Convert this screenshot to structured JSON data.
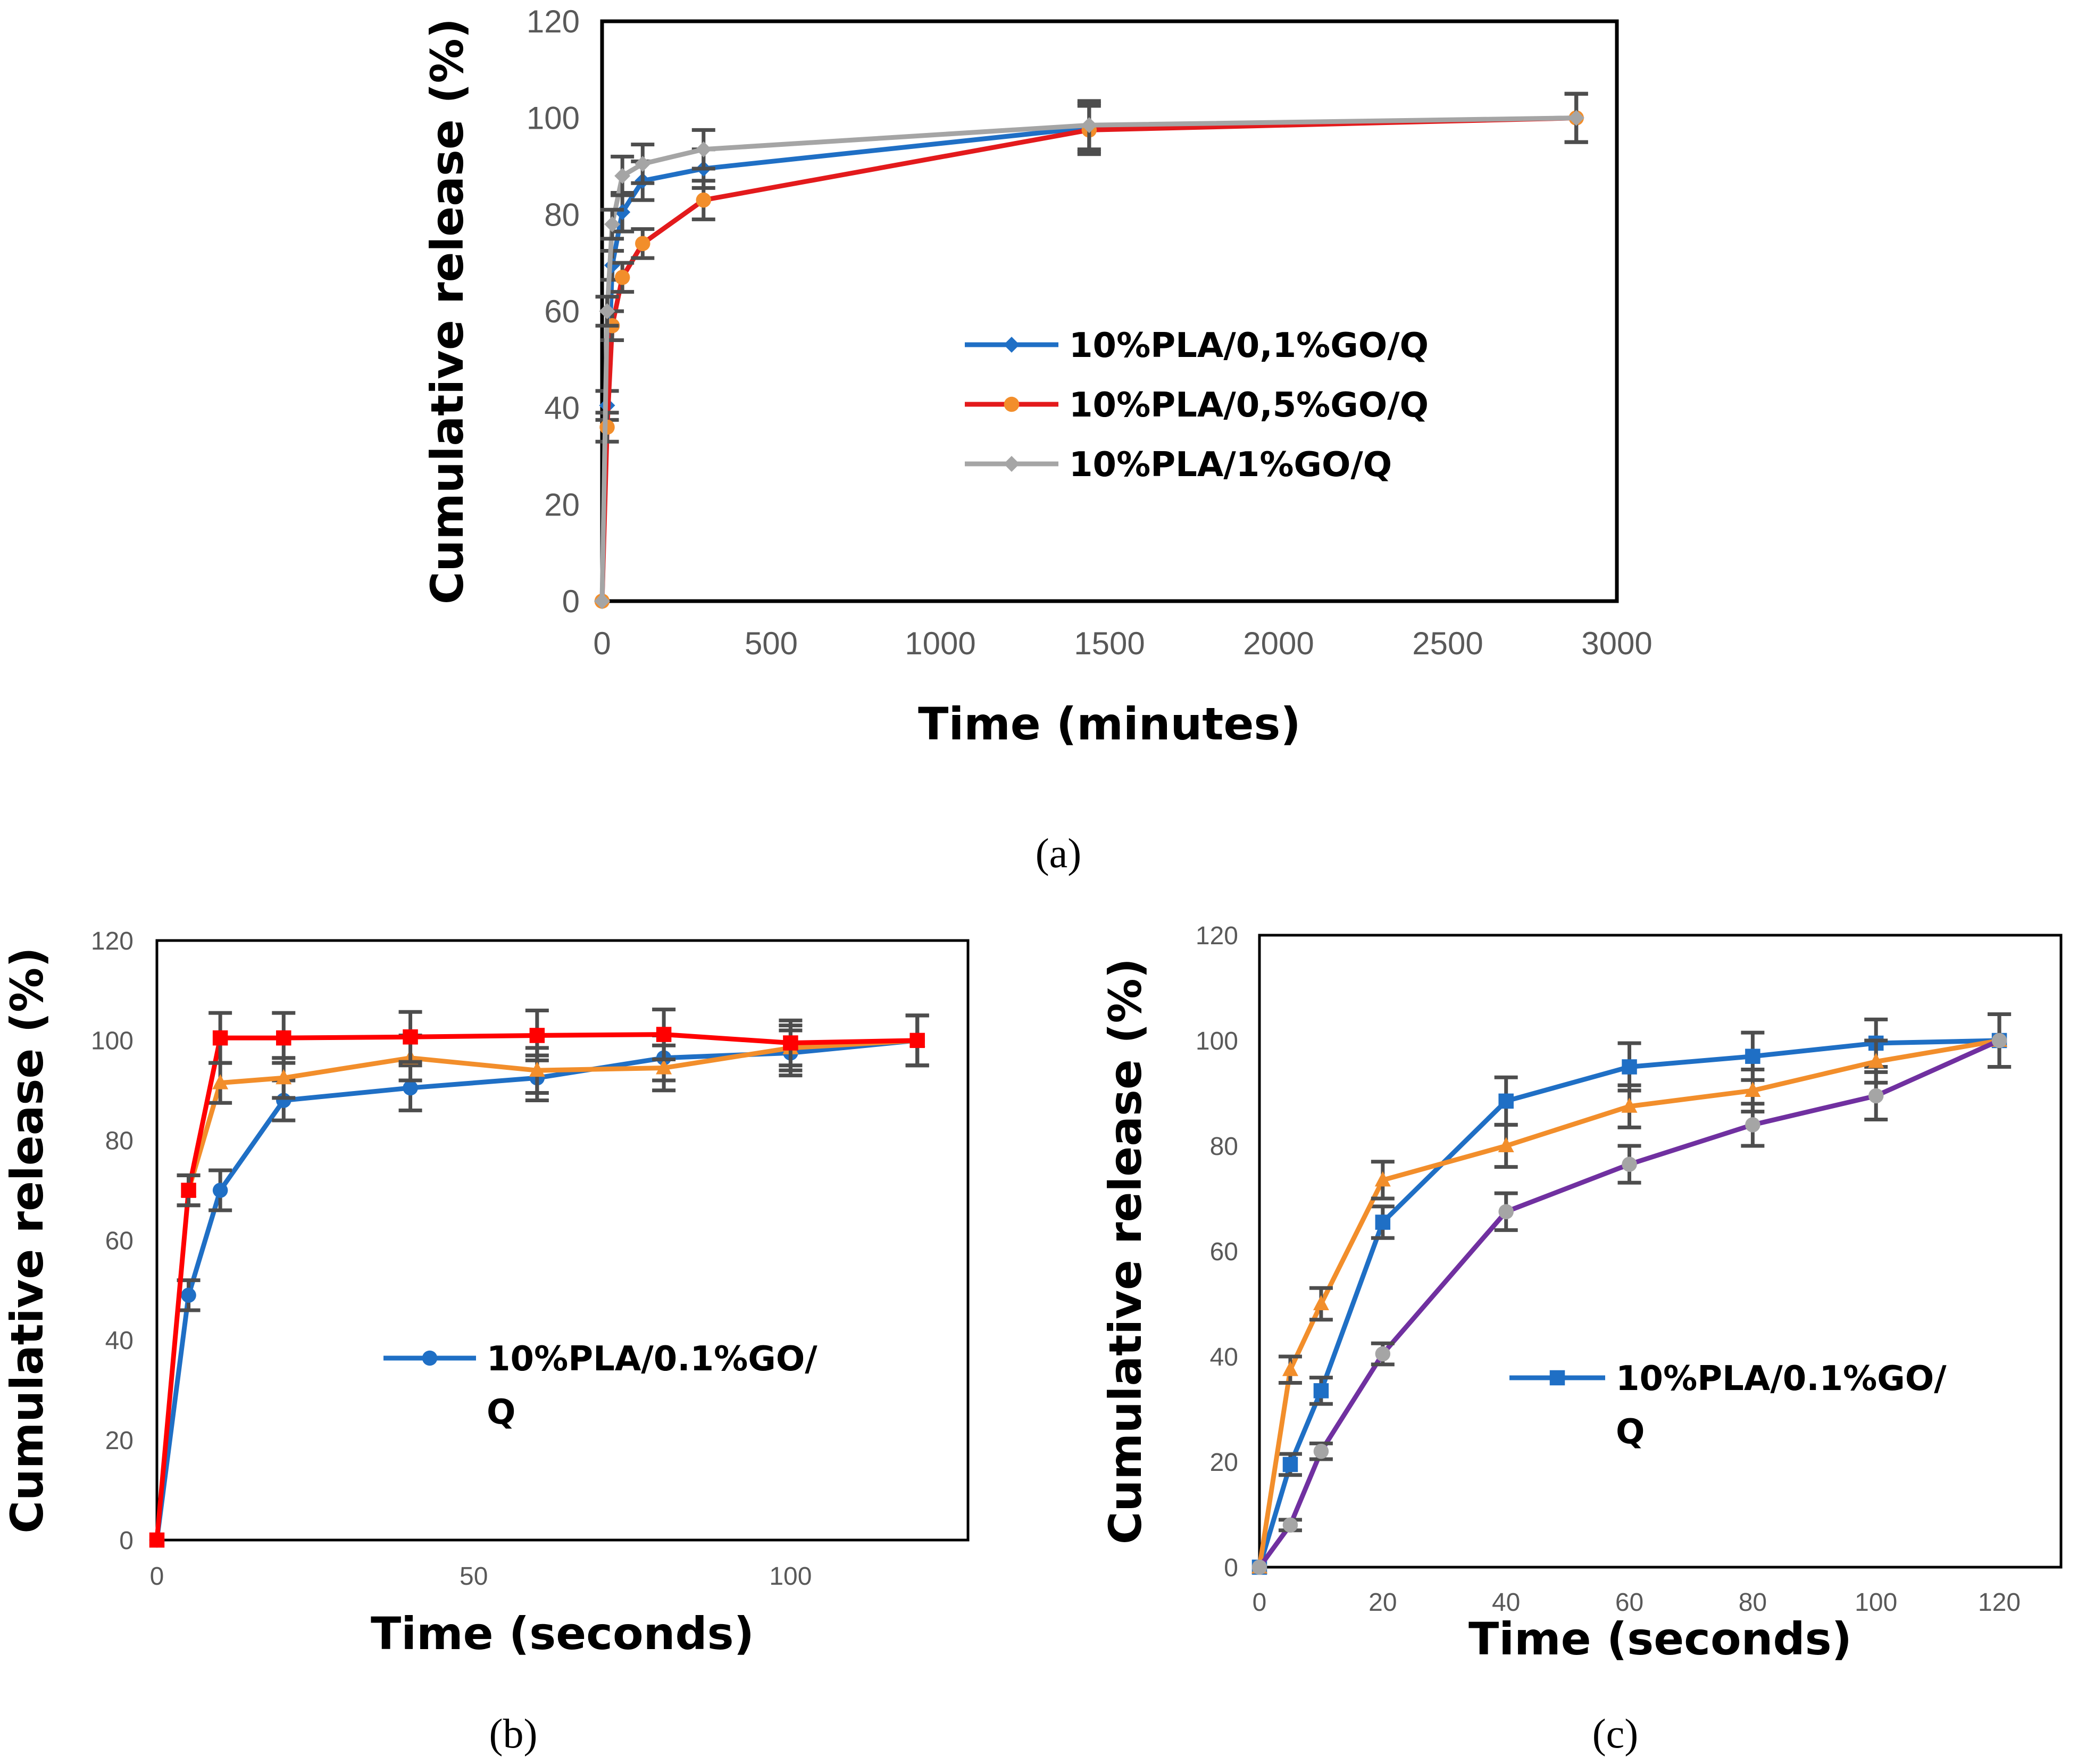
{
  "chart_data": [
    {
      "id": "a",
      "caption": "(a)",
      "type": "line",
      "xlabel": "Time (minutes)",
      "ylabel": "Cumulative release (%)",
      "xlim": [
        0,
        3000
      ],
      "ylim": [
        0,
        120
      ],
      "xticks": [
        0,
        500,
        1000,
        1500,
        2000,
        2500,
        3000
      ],
      "yticks": [
        0,
        20,
        40,
        60,
        80,
        100,
        120
      ],
      "xtick_labels": [
        "0",
        "500",
        "1000",
        "1500",
        "2000",
        "2500",
        "3000"
      ],
      "ytick_labels": [
        "0",
        "20",
        "40",
        "60",
        "80",
        "100",
        "120"
      ],
      "legend_position": "right",
      "series": [
        {
          "name": "10%PLA/0,1%GO/Q",
          "line_color": "#1f6fc5",
          "marker_color": "#1f6fc5",
          "marker": "diamond",
          "x": [
            0,
            15,
            30,
            60,
            120,
            300,
            1440,
            2880
          ],
          "y": [
            0,
            40.5,
            69.5,
            80.5,
            87,
            89.5,
            98,
            100
          ],
          "err": [
            0,
            3,
            3,
            4,
            4,
            4,
            5,
            5
          ]
        },
        {
          "name": "10%PLA/0,5%GO/Q",
          "line_color": "#e31a1c",
          "marker_color": "#f28e2b",
          "marker": "circle",
          "x": [
            0,
            15,
            30,
            60,
            120,
            300,
            1440,
            2880
          ],
          "y": [
            0,
            36,
            57,
            67,
            74,
            83,
            97.5,
            100
          ],
          "err": [
            0,
            3,
            3,
            3,
            3,
            4,
            5,
            5
          ]
        },
        {
          "name": "10%PLA/1%GO/Q",
          "line_color": "#a5a5a5",
          "marker_color": "#a5a5a5",
          "marker": "diamond",
          "x": [
            0,
            15,
            30,
            60,
            120,
            300,
            1440,
            2880
          ],
          "y": [
            0,
            60,
            78,
            88,
            90.5,
            93.5,
            98.5,
            100
          ],
          "err": [
            0,
            3,
            3,
            4,
            4,
            4,
            5,
            5
          ]
        }
      ]
    },
    {
      "id": "b",
      "caption": "(b)",
      "type": "line",
      "xlabel": "Time (seconds)",
      "ylabel": "Cumulative release (%)",
      "xlim": [
        0,
        128
      ],
      "ylim": [
        0,
        120
      ],
      "xticks": [
        0,
        50,
        100
      ],
      "yticks": [
        0,
        20,
        40,
        60,
        80,
        100,
        120
      ],
      "xtick_labels": [
        "0",
        "50",
        "100"
      ],
      "ytick_labels": [
        "0",
        "20",
        "40",
        "60",
        "80",
        "100",
        "120"
      ],
      "legend_position": "center-right",
      "series": [
        {
          "name": "10%PLA/0.1%GO/Q",
          "legend_lines": [
            "10%PLA/0.1%GO/",
            "Q"
          ],
          "line_color": "#1f6fc5",
          "marker_color": "#1f6fc5",
          "marker": "circle",
          "x": [
            0,
            5,
            10,
            20,
            40,
            60,
            80,
            100,
            120
          ],
          "y": [
            0,
            49,
            70,
            88,
            90.5,
            92.5,
            96.5,
            97.5,
            100
          ],
          "err": [
            0,
            3,
            4,
            4,
            4.5,
            4.5,
            4.5,
            4.5,
            5
          ],
          "show_in_legend": true
        },
        {
          "name": "",
          "line_color": "#f28e2b",
          "marker_color": "#f28e2b",
          "marker": "triangle",
          "x": [
            5,
            10,
            20,
            40,
            60,
            80,
            100,
            120
          ],
          "y": [
            70,
            91.5,
            92.5,
            96.5,
            94,
            94.5,
            98.5,
            100
          ],
          "err": [
            3,
            4,
            4,
            4.5,
            4.5,
            4.5,
            4.5,
            5
          ],
          "show_in_legend": false
        },
        {
          "name": "",
          "line_color": "#ff0000",
          "marker_color": "#ff0000",
          "marker": "square",
          "x": [
            0,
            5,
            10,
            20,
            40,
            60,
            80,
            100,
            120
          ],
          "y": [
            0,
            70,
            100.5,
            100.5,
            100.7,
            101,
            101.2,
            99.5,
            100
          ],
          "err": [
            0,
            3,
            5,
            5,
            5,
            5,
            5,
            4.5,
            5
          ],
          "show_in_legend": false
        }
      ]
    },
    {
      "id": "c",
      "caption": "(c)",
      "type": "line",
      "xlabel": "Time (seconds)",
      "ylabel": "Cumulative release (%)",
      "xlim": [
        0,
        130
      ],
      "ylim": [
        0,
        120
      ],
      "xticks": [
        0,
        20,
        40,
        60,
        80,
        100,
        120
      ],
      "yticks": [
        0,
        20,
        40,
        60,
        80,
        100,
        120
      ],
      "xtick_labels": [
        "0",
        "20",
        "40",
        "60",
        "80",
        "100",
        "120"
      ],
      "ytick_labels": [
        "0",
        "20",
        "40",
        "60",
        "80",
        "100",
        "120"
      ],
      "legend_position": "center-right",
      "series": [
        {
          "name": "10%PLA/0.1%GO/Q",
          "legend_lines": [
            "10%PLA/0.1%GO/",
            "Q"
          ],
          "line_color": "#1f6fc5",
          "marker_color": "#1f6fc5",
          "marker": "square",
          "x": [
            0,
            5,
            10,
            20,
            40,
            60,
            80,
            100,
            120
          ],
          "y": [
            0,
            19.5,
            33.5,
            65.5,
            88.5,
            95,
            97,
            99.5,
            100
          ],
          "err": [
            0,
            2,
            2.5,
            3,
            4.5,
            4.5,
            4.5,
            4.5,
            5
          ],
          "show_in_legend": true
        },
        {
          "name": "",
          "line_color": "#f28e2b",
          "marker_color": "#f28e2b",
          "marker": "triangle",
          "x": [
            0,
            5,
            10,
            20,
            40,
            60,
            80,
            100,
            120
          ],
          "y": [
            0,
            37.5,
            50,
            73.5,
            80,
            87.5,
            90.5,
            96,
            100
          ],
          "err": [
            0,
            2.5,
            3,
            3.5,
            4,
            4,
            4,
            4,
            5
          ],
          "show_in_legend": false
        },
        {
          "name": "",
          "line_color": "#7030a0",
          "marker_color": "#a5a5a5",
          "marker": "circle",
          "x": [
            0,
            5,
            10,
            20,
            40,
            60,
            80,
            100,
            120
          ],
          "y": [
            0,
            8,
            22,
            40.5,
            67.5,
            76.5,
            84,
            89.5,
            100
          ],
          "err": [
            0,
            1,
            1.5,
            2,
            3.5,
            3.5,
            4,
            4.5,
            5
          ],
          "show_in_legend": false
        }
      ]
    }
  ]
}
